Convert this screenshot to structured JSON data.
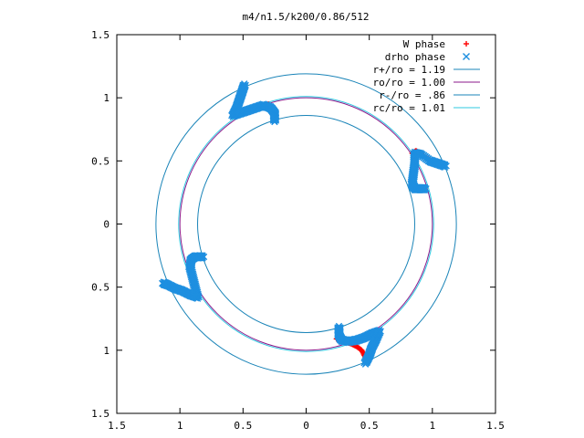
{
  "chart_data": {
    "type": "scatter",
    "title": "m4/n1.5/k200/0.86/512",
    "xlim": [
      -1.5,
      1.5
    ],
    "ylim": [
      -1.5,
      1.5
    ],
    "x_ticks": [
      -1.5,
      -1,
      -0.5,
      0,
      0.5,
      1,
      1.5
    ],
    "y_ticks": [
      -1.5,
      -1,
      -0.5,
      0,
      0.5,
      1,
      1.5
    ],
    "x_tick_labels": [
      "1.5",
      "1",
      "0.5",
      "0",
      "0.5",
      "1",
      "1.5"
    ],
    "y_tick_labels": [
      "1.5",
      "1",
      "0.5",
      "0",
      "0.5",
      "1",
      "1.5"
    ],
    "grid": false,
    "legend_position": "top-right",
    "legend": [
      {
        "label": "W phase",
        "kind": "points",
        "marker": "+",
        "color": "#ff0000"
      },
      {
        "label": "drho phase",
        "kind": "points",
        "marker": "x",
        "color": "#1e8fe0"
      },
      {
        "label": "r+/ro = 1.19",
        "kind": "line",
        "color": "#1a84b8"
      },
      {
        "label": "ro/ro = 1.00",
        "kind": "line",
        "color": "#8b1a8b"
      },
      {
        "label": "r-/ro = .86",
        "kind": "line",
        "color": "#1a84b8"
      },
      {
        "label": "rc/ro = 1.01",
        "kind": "line",
        "color": "#2ec8e0"
      }
    ],
    "circles": [
      {
        "name": "r+/ro = 1.19",
        "r": 1.19,
        "color": "#1a84b8"
      },
      {
        "name": "ro/ro = 1.00",
        "r": 1.0,
        "color": "#8b1a8b"
      },
      {
        "name": "r-/ro = .86",
        "r": 0.86,
        "color": "#1a84b8"
      },
      {
        "name": "rc/ro = 1.01",
        "r": 1.01,
        "color": "#2ec8e0"
      }
    ],
    "series": [
      {
        "name": "W phase",
        "marker": "+",
        "color": "#ff0000",
        "arms": [
          [
            [
              -0.47,
              0.88
            ],
            [
              -0.41,
              0.9
            ],
            [
              -0.36,
              0.93
            ],
            [
              -0.3,
              0.95
            ],
            [
              -0.27,
              0.92
            ],
            [
              -0.25,
              0.88
            ]
          ],
          [
            [
              0.84,
              0.56
            ],
            [
              0.87,
              0.58
            ],
            [
              0.9,
              0.56
            ],
            [
              0.94,
              0.53
            ],
            [
              1.0,
              0.5
            ],
            [
              1.05,
              0.48
            ],
            [
              1.09,
              0.47
            ]
          ],
          [
            [
              0.24,
              -0.91
            ],
            [
              0.3,
              -0.93
            ],
            [
              0.36,
              -0.95
            ],
            [
              0.4,
              -0.97
            ],
            [
              0.44,
              -1.0
            ],
            [
              0.47,
              -1.06
            ],
            [
              0.48,
              -1.08
            ]
          ],
          [
            [
              -0.97,
              -0.55
            ],
            [
              -1.02,
              -0.52
            ],
            [
              -1.07,
              -0.5
            ]
          ]
        ]
      },
      {
        "name": "drho phase",
        "marker": "x",
        "color": "#1e8fe0",
        "arms": [
          [
            [
              -0.25,
              0.82
            ],
            [
              -0.25,
              0.88
            ],
            [
              -0.28,
              0.92
            ],
            [
              -0.34,
              0.94
            ],
            [
              -0.4,
              0.92
            ],
            [
              -0.46,
              0.9
            ],
            [
              -0.52,
              0.88
            ],
            [
              -0.58,
              0.86
            ],
            [
              -0.55,
              0.92
            ],
            [
              -0.53,
              0.98
            ],
            [
              -0.51,
              1.04
            ],
            [
              -0.49,
              1.1
            ]
          ],
          [
            [
              0.94,
              0.28
            ],
            [
              0.9,
              0.28
            ],
            [
              0.86,
              0.28
            ],
            [
              0.84,
              0.32
            ],
            [
              0.85,
              0.4
            ],
            [
              0.86,
              0.48
            ],
            [
              0.86,
              0.56
            ],
            [
              0.91,
              0.55
            ],
            [
              0.98,
              0.5
            ],
            [
              1.04,
              0.48
            ],
            [
              1.1,
              0.46
            ]
          ],
          [
            [
              0.26,
              -0.82
            ],
            [
              0.26,
              -0.88
            ],
            [
              0.28,
              -0.92
            ],
            [
              0.34,
              -0.93
            ],
            [
              0.4,
              -0.92
            ],
            [
              0.46,
              -0.9
            ],
            [
              0.52,
              -0.87
            ],
            [
              0.58,
              -0.85
            ],
            [
              0.55,
              -0.92
            ],
            [
              0.52,
              -0.98
            ],
            [
              0.5,
              -1.04
            ],
            [
              0.47,
              -1.1
            ]
          ],
          [
            [
              -0.82,
              -0.26
            ],
            [
              -0.88,
              -0.26
            ],
            [
              -0.91,
              -0.28
            ],
            [
              -0.92,
              -0.34
            ],
            [
              -0.9,
              -0.42
            ],
            [
              -0.88,
              -0.5
            ],
            [
              -0.86,
              -0.58
            ],
            [
              -0.92,
              -0.56
            ],
            [
              -0.98,
              -0.53
            ],
            [
              -1.04,
              -0.51
            ],
            [
              -1.1,
              -0.48
            ],
            [
              -1.13,
              -0.47
            ]
          ]
        ]
      }
    ]
  }
}
